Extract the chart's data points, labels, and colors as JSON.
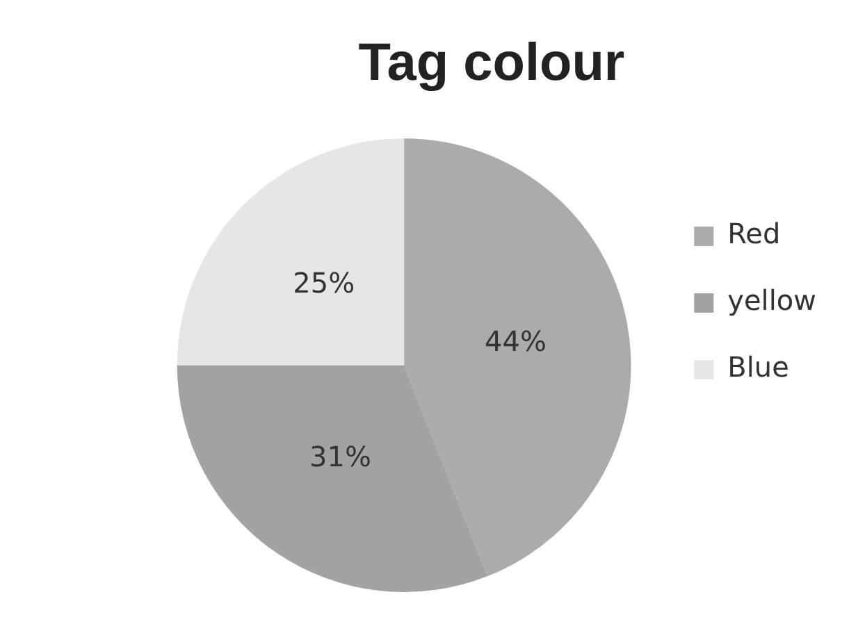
{
  "chart_data": {
    "type": "pie",
    "title": "Tag colour",
    "categories": [
      "Red",
      "yellow",
      "Blue"
    ],
    "values": [
      44,
      31,
      25
    ],
    "colors": [
      "#ababab",
      "#a3a3a3",
      "#e6e6e6"
    ],
    "value_labels": [
      "44%",
      "31%",
      "25%"
    ],
    "legend": "right"
  }
}
